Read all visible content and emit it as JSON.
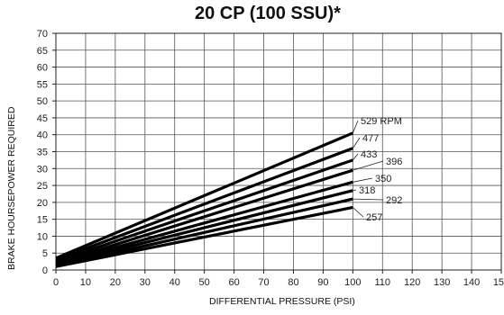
{
  "chart_data": {
    "type": "line",
    "title": "20 CP (100 SSU)*",
    "xlabel": "DIFFERENTIAL PRESSURE (PSI)",
    "ylabel": "BRAKE HOURSEPOWER REQUIRED",
    "xlim": [
      0,
      150
    ],
    "ylim": [
      0,
      70
    ],
    "x_ticks": [
      "0",
      "10",
      "20",
      "30",
      "40",
      "50",
      "60",
      "70",
      "80",
      "90",
      "100",
      "110",
      "120",
      "130",
      "140",
      "150"
    ],
    "y_ticks": [
      "0",
      "5",
      "10",
      "15",
      "20",
      "25",
      "30",
      "35",
      "40",
      "45",
      "50",
      "55",
      "60",
      "65",
      "70"
    ],
    "grid": true,
    "series": [
      {
        "name": "529 RPM",
        "x": [
          0,
          100
        ],
        "y": [
          3.5,
          40.5
        ]
      },
      {
        "name": "477",
        "x": [
          0,
          100
        ],
        "y": [
          3.0,
          36.0
        ]
      },
      {
        "name": "433",
        "x": [
          0,
          100
        ],
        "y": [
          2.5,
          32.5
        ]
      },
      {
        "name": "396",
        "x": [
          0,
          100
        ],
        "y": [
          2.0,
          29.5
        ]
      },
      {
        "name": "350",
        "x": [
          0,
          100
        ],
        "y": [
          1.8,
          26.0
        ]
      },
      {
        "name": "318",
        "x": [
          0,
          100
        ],
        "y": [
          1.5,
          23.5
        ]
      },
      {
        "name": "292",
        "x": [
          0,
          100
        ],
        "y": [
          1.2,
          21.0
        ]
      },
      {
        "name": "257",
        "x": [
          0,
          100
        ],
        "y": [
          1.0,
          18.5
        ]
      }
    ]
  }
}
